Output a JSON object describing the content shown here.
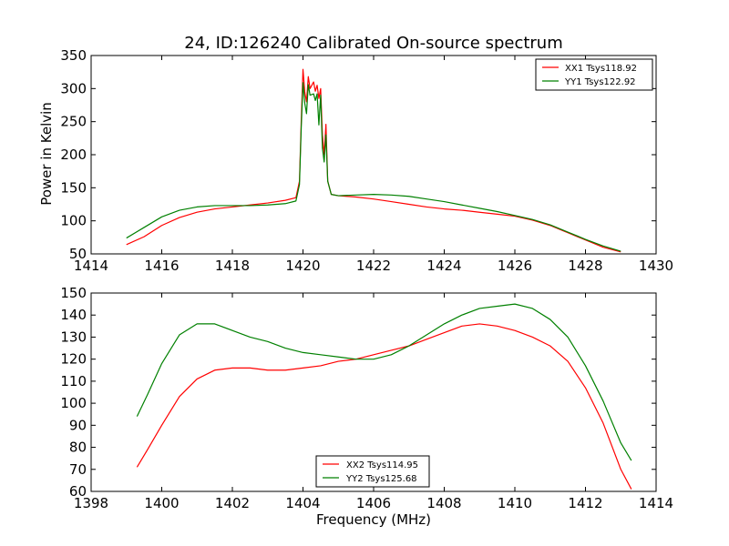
{
  "chart_data": [
    {
      "type": "line",
      "title": "24, ID:126240 Calibrated On-source spectrum",
      "xlabel": "",
      "ylabel": "Power in Kelvin",
      "xlim": [
        1414,
        1430
      ],
      "ylim": [
        50,
        350
      ],
      "xticks": [
        "1414",
        "1416",
        "1418",
        "1420",
        "1422",
        "1424",
        "1426",
        "1428",
        "1430"
      ],
      "yticks": [
        "50",
        "100",
        "150",
        "200",
        "250",
        "300",
        "350"
      ],
      "legend_position": "top-right",
      "grid": false,
      "series": [
        {
          "name": "XX1 Tsys118.92",
          "color": "#ff0000",
          "points": [
            [
              1415,
              64
            ],
            [
              1415.5,
              76
            ],
            [
              1416,
              93
            ],
            [
              1416.5,
              105
            ],
            [
              1417,
              113
            ],
            [
              1417.5,
              118
            ],
            [
              1418,
              121
            ],
            [
              1418.5,
              124
            ],
            [
              1419,
              127
            ],
            [
              1419.5,
              131
            ],
            [
              1419.8,
              135
            ],
            [
              1419.9,
              160
            ],
            [
              1419.95,
              250
            ],
            [
              1420.0,
              329
            ],
            [
              1420.05,
              295
            ],
            [
              1420.1,
              280
            ],
            [
              1420.15,
              318
            ],
            [
              1420.2,
              300
            ],
            [
              1420.3,
              310
            ],
            [
              1420.35,
              296
            ],
            [
              1420.4,
              305
            ],
            [
              1420.45,
              285
            ],
            [
              1420.5,
              300
            ],
            [
              1420.55,
              230
            ],
            [
              1420.6,
              200
            ],
            [
              1420.65,
              246
            ],
            [
              1420.7,
              160
            ],
            [
              1420.8,
              140
            ],
            [
              1421,
              138
            ],
            [
              1421.5,
              136
            ],
            [
              1422,
              133
            ],
            [
              1422.5,
              129
            ],
            [
              1423,
              125
            ],
            [
              1423.5,
              121
            ],
            [
              1424,
              118
            ],
            [
              1424.5,
              116
            ],
            [
              1425,
              113
            ],
            [
              1425.5,
              110
            ],
            [
              1426,
              107
            ],
            [
              1426.5,
              101
            ],
            [
              1427,
              93
            ],
            [
              1427.5,
              82
            ],
            [
              1428,
              71
            ],
            [
              1428.5,
              60
            ],
            [
              1429,
              53
            ]
          ]
        },
        {
          "name": "YY1 Tsys122.92",
          "color": "#008000",
          "points": [
            [
              1415,
              74
            ],
            [
              1415.5,
              90
            ],
            [
              1416,
              106
            ],
            [
              1416.5,
              116
            ],
            [
              1417,
              121
            ],
            [
              1417.5,
              123
            ],
            [
              1418,
              123
            ],
            [
              1418.5,
              123
            ],
            [
              1419,
              124
            ],
            [
              1419.5,
              126
            ],
            [
              1419.8,
              130
            ],
            [
              1419.9,
              155
            ],
            [
              1419.95,
              240
            ],
            [
              1420.0,
              309
            ],
            [
              1420.05,
              278
            ],
            [
              1420.1,
              262
            ],
            [
              1420.15,
              306
            ],
            [
              1420.2,
              290
            ],
            [
              1420.3,
              292
            ],
            [
              1420.35,
              282
            ],
            [
              1420.4,
              292
            ],
            [
              1420.45,
              245
            ],
            [
              1420.5,
              290
            ],
            [
              1420.55,
              210
            ],
            [
              1420.6,
              189
            ],
            [
              1420.65,
              230
            ],
            [
              1420.7,
              160
            ],
            [
              1420.8,
              140
            ],
            [
              1421,
              138
            ],
            [
              1421.5,
              139
            ],
            [
              1422,
              140
            ],
            [
              1422.5,
              139
            ],
            [
              1423,
              137
            ],
            [
              1423.5,
              133
            ],
            [
              1424,
              129
            ],
            [
              1424.5,
              124
            ],
            [
              1425,
              119
            ],
            [
              1425.5,
              114
            ],
            [
              1426,
              108
            ],
            [
              1426.5,
              102
            ],
            [
              1427,
              94
            ],
            [
              1427.5,
              83
            ],
            [
              1428,
              72
            ],
            [
              1428.5,
              62
            ],
            [
              1429,
              54
            ]
          ]
        }
      ]
    },
    {
      "type": "line",
      "title": "",
      "xlabel": "Frequency (MHz)",
      "ylabel": "",
      "xlim": [
        1398,
        1414
      ],
      "ylim": [
        60,
        150
      ],
      "xticks": [
        "1398",
        "1400",
        "1402",
        "1404",
        "1406",
        "1408",
        "1410",
        "1412",
        "1414"
      ],
      "yticks": [
        "60",
        "70",
        "80",
        "90",
        "100",
        "110",
        "120",
        "130",
        "140",
        "150"
      ],
      "legend_position": "bottom-center",
      "grid": false,
      "series": [
        {
          "name": "XX2 Tsys114.95",
          "color": "#ff0000",
          "points": [
            [
              1399.3,
              71
            ],
            [
              1399.6,
              79
            ],
            [
              1400,
              90
            ],
            [
              1400.5,
              103
            ],
            [
              1401,
              111
            ],
            [
              1401.5,
              115
            ],
            [
              1402,
              116
            ],
            [
              1402.5,
              116
            ],
            [
              1403,
              115
            ],
            [
              1403.5,
              115
            ],
            [
              1404,
              116
            ],
            [
              1404.5,
              117
            ],
            [
              1405,
              119
            ],
            [
              1405.5,
              120
            ],
            [
              1406,
              122
            ],
            [
              1406.5,
              124
            ],
            [
              1407,
              126
            ],
            [
              1407.5,
              129
            ],
            [
              1408,
              132
            ],
            [
              1408.5,
              135
            ],
            [
              1409,
              136
            ],
            [
              1409.5,
              135
            ],
            [
              1410,
              133
            ],
            [
              1410.5,
              130
            ],
            [
              1411,
              126
            ],
            [
              1411.5,
              119
            ],
            [
              1412,
              107
            ],
            [
              1412.5,
              91
            ],
            [
              1413,
              70
            ],
            [
              1413.3,
              61
            ]
          ]
        },
        {
          "name": "YY2 Tsys125.68",
          "color": "#008000",
          "points": [
            [
              1399.3,
              94
            ],
            [
              1399.6,
              104
            ],
            [
              1400,
              118
            ],
            [
              1400.5,
              131
            ],
            [
              1401,
              136
            ],
            [
              1401.5,
              136
            ],
            [
              1402,
              133
            ],
            [
              1402.5,
              130
            ],
            [
              1403,
              128
            ],
            [
              1403.5,
              125
            ],
            [
              1404,
              123
            ],
            [
              1404.5,
              122
            ],
            [
              1405,
              121
            ],
            [
              1405.5,
              120
            ],
            [
              1406,
              120
            ],
            [
              1406.5,
              122
            ],
            [
              1407,
              126
            ],
            [
              1407.5,
              131
            ],
            [
              1408,
              136
            ],
            [
              1408.5,
              140
            ],
            [
              1409,
              143
            ],
            [
              1409.5,
              144
            ],
            [
              1410,
              145
            ],
            [
              1410.5,
              143
            ],
            [
              1411,
              138
            ],
            [
              1411.5,
              130
            ],
            [
              1412,
              117
            ],
            [
              1412.5,
              101
            ],
            [
              1413,
              82
            ],
            [
              1413.3,
              74
            ]
          ]
        }
      ]
    }
  ]
}
